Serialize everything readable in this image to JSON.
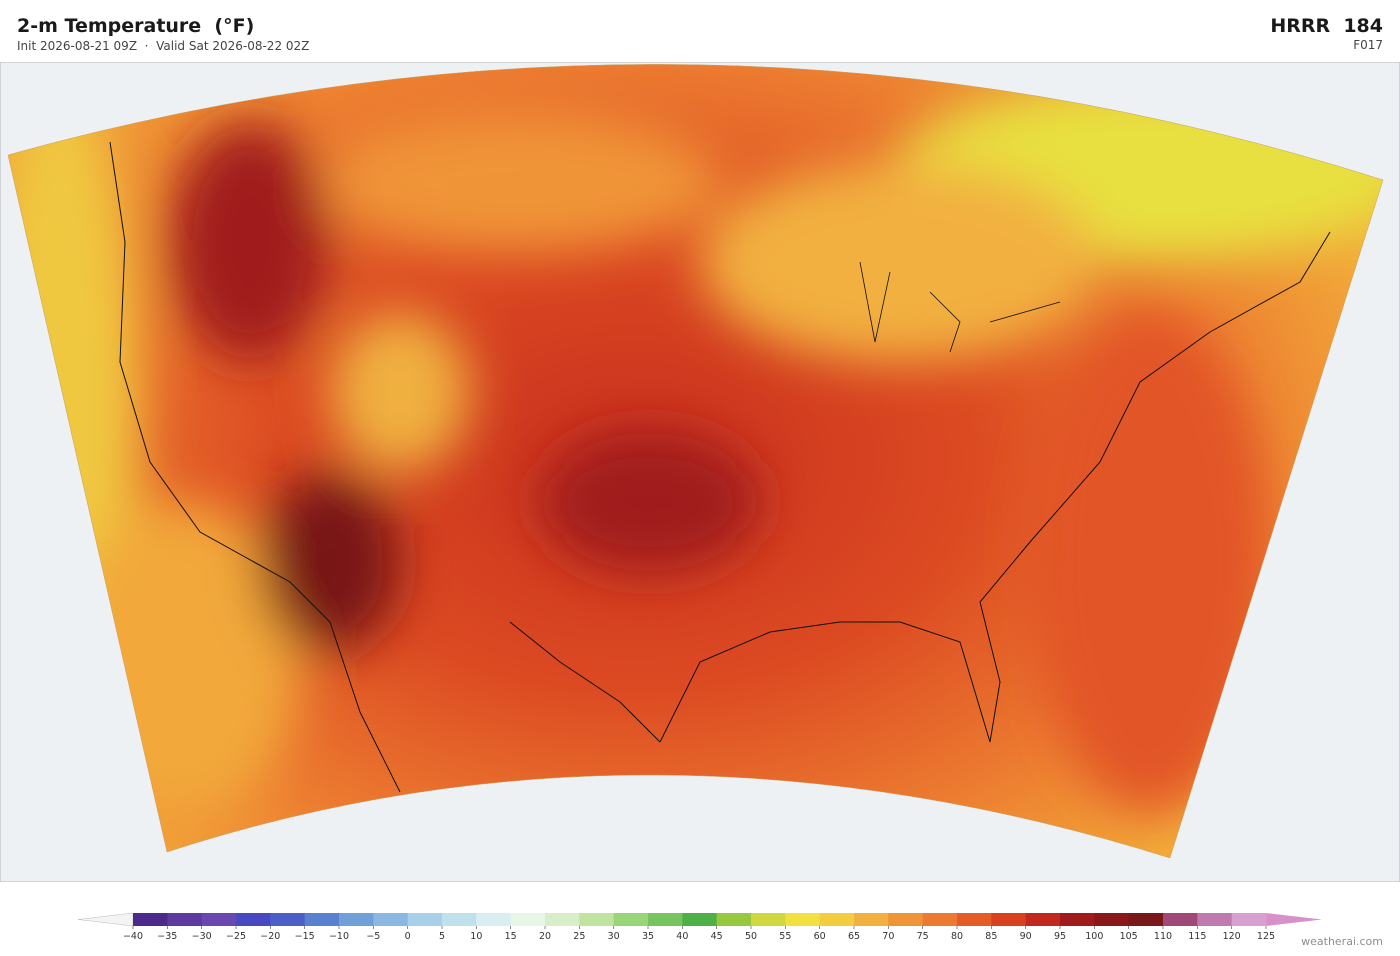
{
  "header": {
    "title": "2-m Temperature  (°F)",
    "subtitle": "Init 2026-08-21 09Z  ·  Valid Sat 2026-08-22 02Z",
    "model": "HRRR  184",
    "forecast_hour": "F017"
  },
  "colorbar": {
    "ticks": [
      {
        "value": -40,
        "label": "−40"
      },
      {
        "value": -35,
        "label": "−35"
      },
      {
        "value": -30,
        "label": "−30"
      },
      {
        "value": -25,
        "label": "−25"
      },
      {
        "value": -20,
        "label": "−20"
      },
      {
        "value": -15,
        "label": "−15"
      },
      {
        "value": -10,
        "label": "−10"
      },
      {
        "value": -5,
        "label": "−5"
      },
      0,
      5,
      10,
      15,
      20,
      25,
      30,
      35,
      40,
      45,
      50,
      55,
      60,
      65,
      70,
      75,
      80,
      85,
      90,
      95,
      100,
      105,
      110,
      115,
      120,
      125
    ],
    "colors": [
      "#4b2a8a",
      "#5e3a9e",
      "#6a48b0",
      "#4848c0",
      "#4a60c8",
      "#5a80d0",
      "#70a0d8",
      "#8ab8e0",
      "#a8d0e8",
      "#c0e0ee",
      "#d8eef2",
      "#e8f6e8",
      "#d8eec8",
      "#c0e4a0",
      "#98d478",
      "#78c460",
      "#50b048",
      "#98c840",
      "#d0d840",
      "#f0e040",
      "#f4cc40",
      "#f2b040",
      "#f09438",
      "#ec7a30",
      "#e45c28",
      "#d84020",
      "#c02820",
      "#a01c1c",
      "#8a1818",
      "#781818",
      "#a04878",
      "#c07ab0",
      "#d8a0d0"
    ],
    "under_color": "#f4f4f4",
    "over_color": "#d890c8"
  },
  "credit": "weatherai.com"
}
